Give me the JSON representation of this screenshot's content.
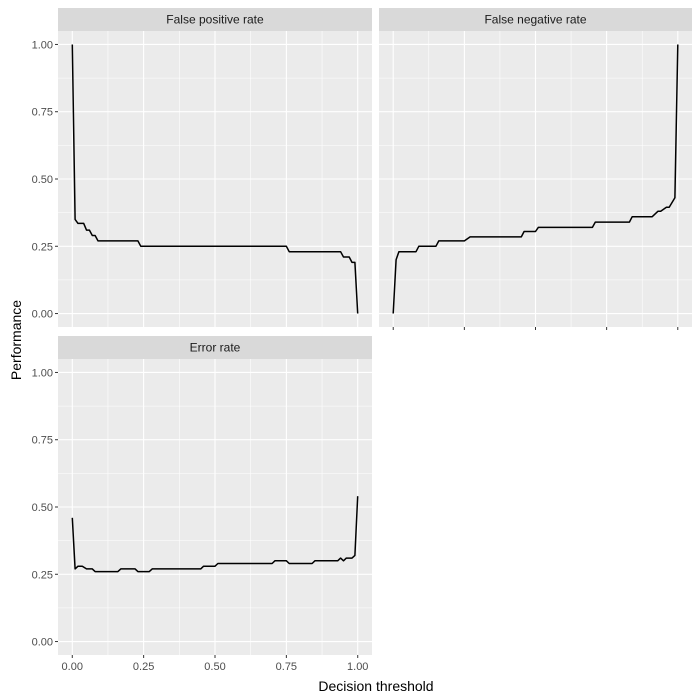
{
  "chart_data": {
    "type": "line",
    "xlabel": "Decision threshold",
    "ylabel": "Performance",
    "xlim": [
      0,
      1
    ],
    "ylim": [
      0,
      1
    ],
    "x_ticks": [
      "0.00",
      "0.25",
      "0.50",
      "0.75",
      "1.00"
    ],
    "y_ticks": [
      "0.00",
      "0.25",
      "0.50",
      "0.75",
      "1.00"
    ],
    "grid": true,
    "line_color": "#000000",
    "panels": [
      {
        "title": "False positive rate",
        "x": [
          0.0,
          0.01,
          0.02,
          0.04,
          0.05,
          0.06,
          0.07,
          0.08,
          0.09,
          0.12,
          0.16,
          0.2,
          0.23,
          0.24,
          0.3,
          0.4,
          0.5,
          0.6,
          0.7,
          0.75,
          0.76,
          0.8,
          0.85,
          0.9,
          0.94,
          0.95,
          0.97,
          0.98,
          0.99,
          1.0
        ],
        "y": [
          1.0,
          0.35,
          0.335,
          0.335,
          0.31,
          0.31,
          0.29,
          0.29,
          0.27,
          0.27,
          0.27,
          0.27,
          0.27,
          0.25,
          0.25,
          0.25,
          0.25,
          0.25,
          0.25,
          0.25,
          0.23,
          0.23,
          0.23,
          0.23,
          0.23,
          0.21,
          0.21,
          0.19,
          0.19,
          0.0
        ]
      },
      {
        "title": "False negative rate",
        "x": [
          0.0,
          0.01,
          0.02,
          0.05,
          0.08,
          0.09,
          0.15,
          0.16,
          0.25,
          0.27,
          0.36,
          0.37,
          0.45,
          0.46,
          0.5,
          0.51,
          0.7,
          0.71,
          0.83,
          0.84,
          0.9,
          0.91,
          0.93,
          0.94,
          0.96,
          0.97,
          0.99,
          1.0
        ],
        "y": [
          0.0,
          0.2,
          0.23,
          0.23,
          0.23,
          0.25,
          0.25,
          0.27,
          0.27,
          0.285,
          0.285,
          0.285,
          0.285,
          0.305,
          0.305,
          0.32,
          0.32,
          0.34,
          0.34,
          0.36,
          0.36,
          0.36,
          0.38,
          0.38,
          0.395,
          0.395,
          0.43,
          1.0
        ]
      },
      {
        "title": "Error rate",
        "x": [
          0.0,
          0.01,
          0.02,
          0.035,
          0.05,
          0.07,
          0.08,
          0.16,
          0.17,
          0.22,
          0.23,
          0.27,
          0.28,
          0.45,
          0.46,
          0.5,
          0.51,
          0.7,
          0.71,
          0.75,
          0.76,
          0.84,
          0.85,
          0.93,
          0.94,
          0.95,
          0.96,
          0.98,
          0.99,
          1.0
        ],
        "y": [
          0.46,
          0.27,
          0.28,
          0.28,
          0.27,
          0.27,
          0.26,
          0.26,
          0.27,
          0.27,
          0.26,
          0.26,
          0.27,
          0.27,
          0.28,
          0.28,
          0.29,
          0.29,
          0.3,
          0.3,
          0.29,
          0.29,
          0.3,
          0.3,
          0.31,
          0.3,
          0.31,
          0.31,
          0.32,
          0.54
        ]
      }
    ]
  }
}
